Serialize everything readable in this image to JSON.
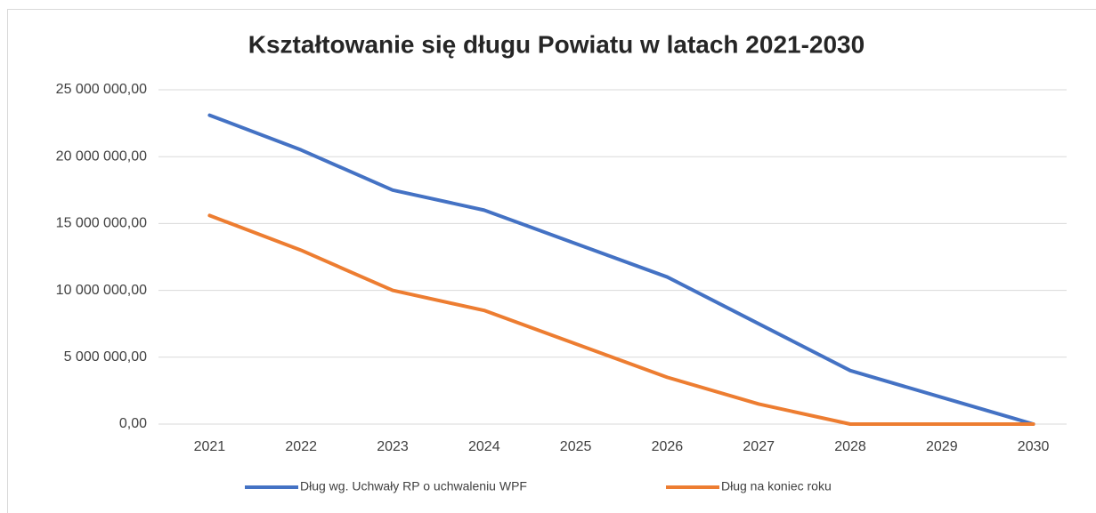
{
  "chart_data": {
    "type": "line",
    "title": "Kształtowanie się długu Powiatu w latach 2021-2030",
    "categories": [
      "2021",
      "2022",
      "2023",
      "2024",
      "2025",
      "2026",
      "2027",
      "2028",
      "2029",
      "2030"
    ],
    "series": [
      {
        "name": "Dług wg. Uchwały RP o uchwaleniu WPF",
        "color": "#4472c4",
        "values": [
          23100000,
          20500000,
          17500000,
          16000000,
          13500000,
          11000000,
          7500000,
          4000000,
          2000000,
          0
        ]
      },
      {
        "name": "Dług na koniec roku",
        "color": "#ed7d31",
        "values": [
          15600000,
          13000000,
          10000000,
          8500000,
          6000000,
          3500000,
          1500000,
          0,
          0,
          0
        ]
      }
    ],
    "ylim": [
      0,
      25000000
    ],
    "yticks": [
      {
        "value": 0,
        "label": "0,00"
      },
      {
        "value": 5000000,
        "label": "5 000 000,00"
      },
      {
        "value": 10000000,
        "label": "10 000 000,00"
      },
      {
        "value": 15000000,
        "label": "15 000 000,00"
      },
      {
        "value": 20000000,
        "label": "20 000 000,00"
      },
      {
        "value": 25000000,
        "label": "25 000 000,00"
      }
    ],
    "grid": true,
    "legend": "bottom"
  }
}
